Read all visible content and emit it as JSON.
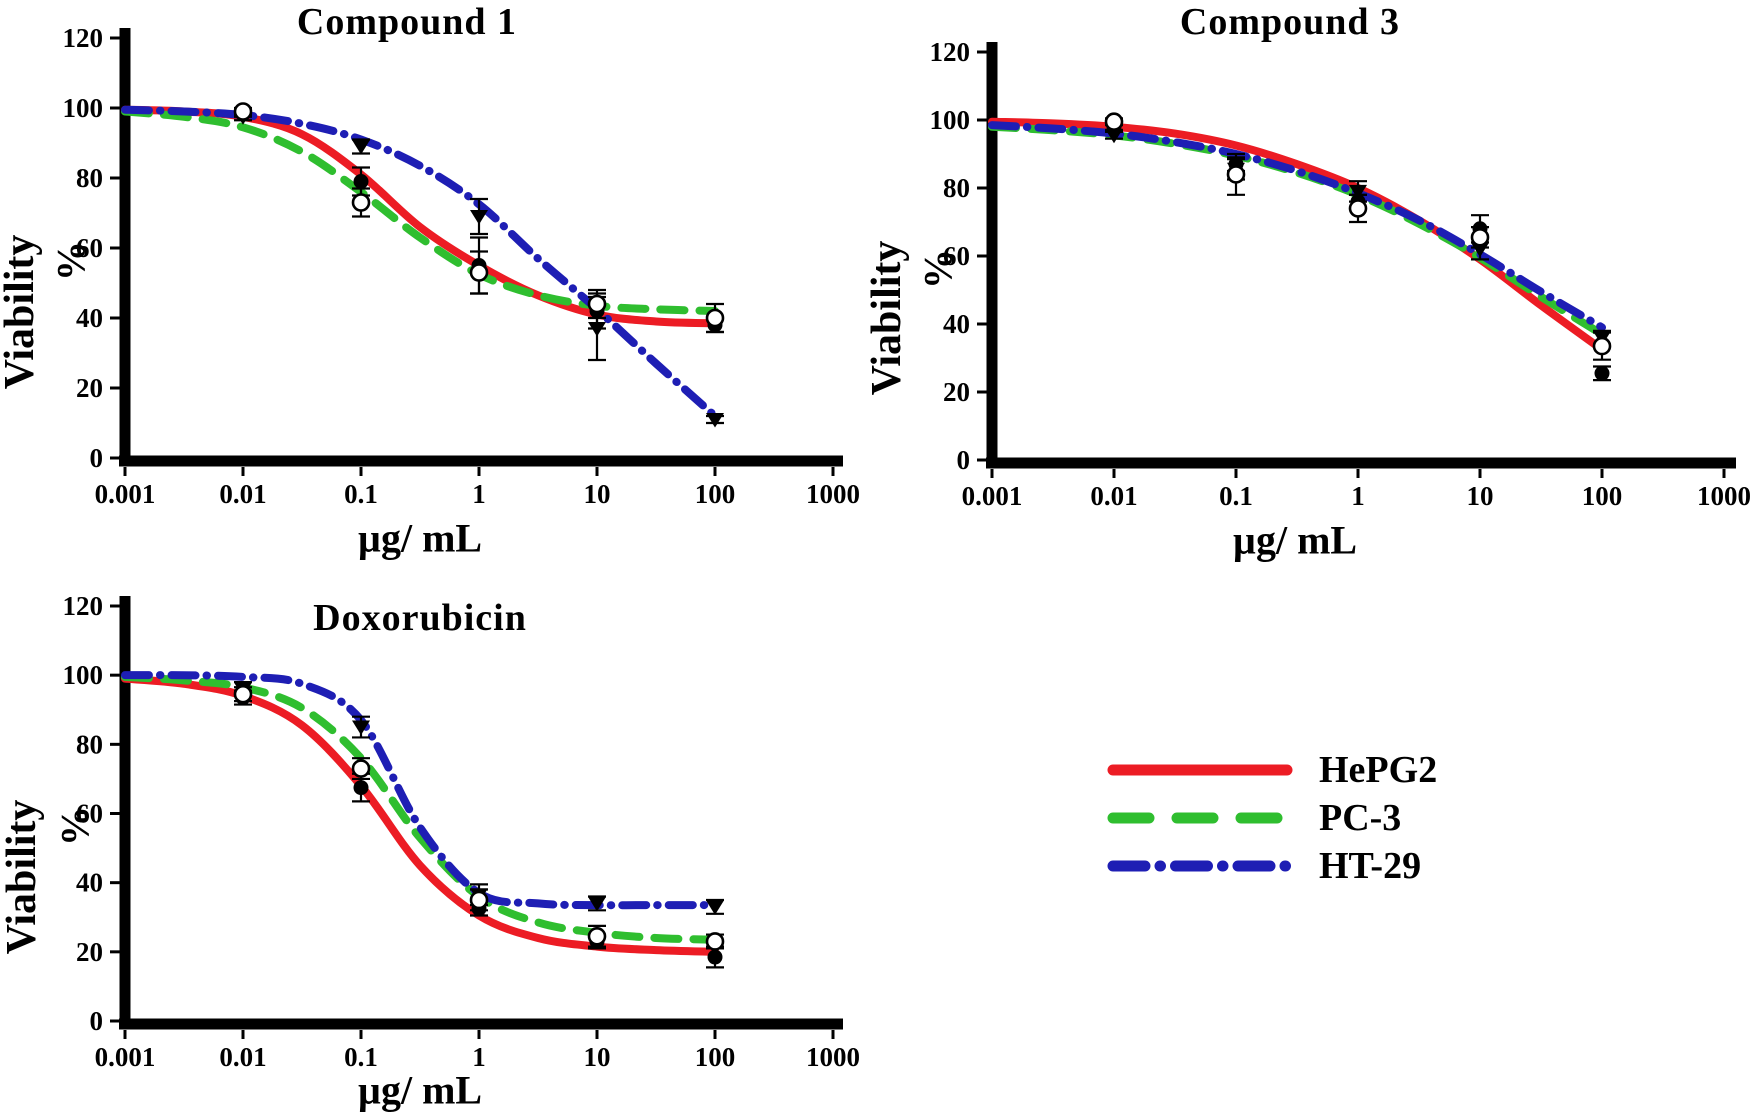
{
  "page": {
    "background": "#ffffff",
    "text_color": "#000000"
  },
  "legend": {
    "items": [
      {
        "label": "HePG2",
        "color": "#ec1c24",
        "style": "solid"
      },
      {
        "label": "PC-3",
        "color": "#2fbe2f",
        "style": "dashed"
      },
      {
        "label": "HT-29",
        "color": "#1e1eb4",
        "style": "dashdot"
      }
    ]
  },
  "chart_data": [
    {
      "id": "compound1",
      "type": "line",
      "title": "Compound 1",
      "xlabel": "µg/ mL",
      "ylabel": "Viability",
      "ylabel_percent": "%",
      "x_scale": "log",
      "xlim": [
        0.001,
        1000
      ],
      "ylim": [
        0,
        120
      ],
      "x_ticks": [
        "0.001",
        "0.01",
        "0.1",
        "1",
        "10",
        "100",
        "1000"
      ],
      "y_ticks": [
        0,
        20,
        40,
        60,
        80,
        100,
        120
      ],
      "grid": false,
      "series": [
        {
          "name": "HePG2",
          "color": "#ec1c24",
          "line": "solid",
          "marker": "filled-circle",
          "points": [
            {
              "x": 0.01,
              "y": 98.5,
              "err": 1
            },
            {
              "x": 0.1,
              "y": 79,
              "err": 4
            },
            {
              "x": 1,
              "y": 55,
              "err": 8
            },
            {
              "x": 10,
              "y": 42,
              "err": 5
            },
            {
              "x": 100,
              "y": 38,
              "err": 2
            }
          ],
          "curve": {
            "logx": [
              -3,
              -2.5,
              -2,
              -1.5,
              -1,
              -0.5,
              0,
              0.5,
              1,
              1.5,
              2
            ],
            "y": [
              99.5,
              99,
              97.5,
              92.5,
              81,
              66,
              55,
              46.5,
              41,
              39,
              38.5
            ]
          }
        },
        {
          "name": "PC-3",
          "color": "#2fbe2f",
          "line": "dashed",
          "marker": "open-circle",
          "points": [
            {
              "x": 0.01,
              "y": 99,
              "err": 1
            },
            {
              "x": 0.1,
              "y": 73,
              "err": 4
            },
            {
              "x": 1,
              "y": 53,
              "err": 6
            },
            {
              "x": 10,
              "y": 44,
              "err": 4
            },
            {
              "x": 100,
              "y": 40,
              "err": 4
            }
          ],
          "curve": {
            "logx": [
              -3,
              -2.5,
              -2,
              -1.5,
              -1,
              -0.5,
              0,
              0.5,
              1,
              1.5,
              2
            ],
            "y": [
              99,
              97.5,
              94.5,
              87.5,
              76,
              63,
              52.5,
              46.5,
              43.5,
              42.5,
              42
            ]
          }
        },
        {
          "name": "HT-29",
          "color": "#1e1eb4",
          "line": "dashdot",
          "marker": "triangle-down",
          "points": [
            {
              "x": 0.01,
              "y": 97.5,
              "err": 1
            },
            {
              "x": 0.1,
              "y": 89,
              "err": 2
            },
            {
              "x": 1,
              "y": 69,
              "err": 5
            },
            {
              "x": 10,
              "y": 37,
              "err": 9
            },
            {
              "x": 100,
              "y": 11,
              "err": 1
            }
          ],
          "curve": {
            "logx": [
              -3,
              -2.5,
              -2,
              -1.5,
              -1,
              -0.5,
              0,
              0.5,
              1,
              1.5,
              2
            ],
            "y": [
              99.5,
              99,
              98,
              95.5,
              91,
              83.5,
              72.5,
              57,
              42.5,
              27,
              12
            ]
          }
        }
      ]
    },
    {
      "id": "compound3",
      "type": "line",
      "title": "Compound 3",
      "xlabel": "µg/ mL",
      "ylabel": "Viability",
      "ylabel_percent": "%",
      "x_scale": "log",
      "xlim": [
        0.001,
        1000
      ],
      "ylim": [
        0,
        120
      ],
      "x_ticks": [
        "0.001",
        "0.01",
        "0.1",
        "1",
        "10",
        "100",
        "1000"
      ],
      "y_ticks": [
        0,
        20,
        40,
        60,
        80,
        100,
        120
      ],
      "grid": false,
      "series": [
        {
          "name": "HePG2",
          "color": "#ec1c24",
          "line": "solid",
          "marker": "filled-circle",
          "points": [
            {
              "x": 0.01,
              "y": 98,
              "err": 1
            },
            {
              "x": 0.1,
              "y": 87,
              "err": 2
            },
            {
              "x": 1,
              "y": 76,
              "err": 2
            },
            {
              "x": 10,
              "y": 68,
              "err": 4
            },
            {
              "x": 100,
              "y": 25.5,
              "err": 2
            }
          ],
          "curve": {
            "logx": [
              -3,
              -2.5,
              -2,
              -1.5,
              -1,
              -0.5,
              0,
              0.5,
              1,
              1.5,
              2
            ],
            "y": [
              99.5,
              99,
              98,
              96,
              92.5,
              87,
              80,
              70.5,
              59,
              45.5,
              32.5
            ]
          }
        },
        {
          "name": "PC-3",
          "color": "#2fbe2f",
          "line": "dashed",
          "marker": "open-circle",
          "points": [
            {
              "x": 0.01,
              "y": 99.5,
              "err": 1
            },
            {
              "x": 0.1,
              "y": 84,
              "err": 6
            },
            {
              "x": 1,
              "y": 74,
              "err": 4
            },
            {
              "x": 10,
              "y": 65.5,
              "err": 3
            },
            {
              "x": 100,
              "y": 33.5,
              "err": 4
            }
          ],
          "curve": {
            "logx": [
              -3,
              -2.5,
              -2,
              -1.5,
              -1,
              -0.5,
              0,
              0.5,
              1,
              1.5,
              2
            ],
            "y": [
              98,
              97,
              95.5,
              93,
              89.5,
              84.5,
              78,
              69.5,
              59.5,
              48,
              37
            ]
          }
        },
        {
          "name": "HT-29",
          "color": "#1e1eb4",
          "line": "dashdot",
          "marker": "triangle-down",
          "points": [
            {
              "x": 0.01,
              "y": 95.5,
              "err": 1
            },
            {
              "x": 0.1,
              "y": 85.5,
              "err": 3
            },
            {
              "x": 1,
              "y": 79,
              "err": 3
            },
            {
              "x": 10,
              "y": 62,
              "err": 3
            },
            {
              "x": 100,
              "y": 36,
              "err": 2
            }
          ],
          "curve": {
            "logx": [
              -3,
              -2.5,
              -2,
              -1.5,
              -1,
              -0.5,
              0,
              0.5,
              1,
              1.5,
              2
            ],
            "y": [
              98.5,
              97.5,
              96,
              93.5,
              90,
              85,
              78.5,
              70.5,
              60.5,
              49.5,
              39
            ]
          }
        }
      ]
    },
    {
      "id": "doxorubicin",
      "type": "line",
      "title": "Doxorubicin",
      "xlabel": "µg/ mL",
      "ylabel": "Viability",
      "ylabel_percent": "%",
      "x_scale": "log",
      "xlim": [
        0.001,
        1000
      ],
      "ylim": [
        0,
        120
      ],
      "x_ticks": [
        "0.001",
        "0.01",
        "0.1",
        "1",
        "10",
        "100",
        "1000"
      ],
      "y_ticks": [
        0,
        20,
        40,
        60,
        80,
        100,
        120
      ],
      "grid": false,
      "series": [
        {
          "name": "HePG2",
          "color": "#ec1c24",
          "line": "solid",
          "marker": "filled-circle",
          "points": [
            {
              "x": 0.01,
              "y": 93.5,
              "err": 2
            },
            {
              "x": 0.1,
              "y": 67.5,
              "err": 4
            },
            {
              "x": 1,
              "y": 32.5,
              "err": 2
            },
            {
              "x": 10,
              "y": 23,
              "err": 2
            },
            {
              "x": 100,
              "y": 18.5,
              "err": 3
            }
          ],
          "curve": {
            "logx": [
              -3,
              -2.5,
              -2,
              -1.5,
              -1,
              -0.5,
              0,
              0.5,
              1,
              1.5,
              2
            ],
            "y": [
              99,
              97.5,
              94,
              85.5,
              68,
              45,
              30.5,
              24,
              21.5,
              20.5,
              20
            ]
          }
        },
        {
          "name": "PC-3",
          "color": "#2fbe2f",
          "line": "dashed",
          "marker": "open-circle",
          "points": [
            {
              "x": 0.01,
              "y": 94.5,
              "err": 2
            },
            {
              "x": 0.1,
              "y": 73,
              "err": 3
            },
            {
              "x": 1,
              "y": 35,
              "err": 3
            },
            {
              "x": 10,
              "y": 24.5,
              "err": 3
            },
            {
              "x": 100,
              "y": 23,
              "err": 2
            }
          ],
          "curve": {
            "logx": [
              -3,
              -2.5,
              -2,
              -1.5,
              -1,
              -0.5,
              0,
              0.5,
              1,
              1.5,
              2
            ],
            "y": [
              99.5,
              98.5,
              96.5,
              90.5,
              76,
              53,
              36,
              28.5,
              25.5,
              24,
              23.5
            ]
          }
        },
        {
          "name": "HT-29",
          "color": "#1e1eb4",
          "line": "dashdot",
          "marker": "triangle-down",
          "points": [
            {
              "x": 0.01,
              "y": 96,
              "err": 2
            },
            {
              "x": 0.1,
              "y": 85,
              "err": 3
            },
            {
              "x": 1,
              "y": 36.5,
              "err": 3
            },
            {
              "x": 10,
              "y": 34,
              "err": 2
            },
            {
              "x": 100,
              "y": 33,
              "err": 2
            }
          ],
          "curve": {
            "logx": [
              -3,
              -2.5,
              -2,
              -1.5,
              -1,
              -0.5,
              0,
              0.5,
              1,
              1.5,
              2
            ],
            "y": [
              100,
              100,
              99.5,
              97.5,
              87,
              56,
              37,
              34,
              33.5,
              33.5,
              33.5
            ]
          }
        }
      ]
    }
  ]
}
